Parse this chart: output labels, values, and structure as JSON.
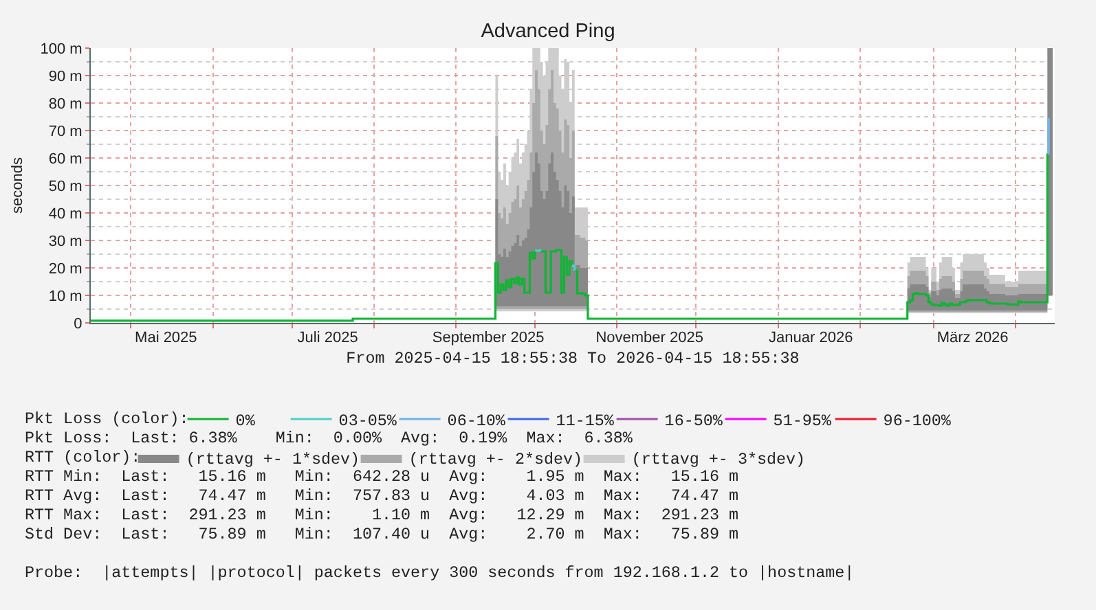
{
  "chart_data": {
    "type": "step",
    "title": "Advanced Ping",
    "xlabel": "From 2025-04-15 18:55:38 To 2026-04-15 18:55:38",
    "ylabel": "seconds",
    "xlim": [
      "2025-04-15T18:55",
      "2026-04-15T18:55"
    ],
    "xticks": [
      {
        "value": "2025-05-01",
        "label": null
      },
      {
        "value": "2025-05-14T06:00",
        "label": "Mai 2025"
      },
      {
        "value": "2025-06-01",
        "label": null
      },
      {
        "value": "2025-07-01",
        "label": null
      },
      {
        "value": "2025-07-14T12:00",
        "label": "Juli 2025"
      },
      {
        "value": "2025-08-01",
        "label": null
      },
      {
        "value": "2025-09-01",
        "label": null
      },
      {
        "value": "2025-09-13T07:00",
        "label": "September 2025"
      },
      {
        "value": "2025-10-01",
        "label": null
      },
      {
        "value": "2025-11-01",
        "label": null
      },
      {
        "value": "2025-11-13T09:00",
        "label": "November 2025"
      },
      {
        "value": "2025-12-01",
        "label": null
      },
      {
        "value": "2026-01-01",
        "label": null
      },
      {
        "value": "2026-01-13T10:00",
        "label": "Januar 2026"
      },
      {
        "value": "2026-02-01",
        "label": null
      },
      {
        "value": "2026-03-01",
        "label": null
      },
      {
        "value": "2026-03-15T17:00",
        "label": "März 2026"
      },
      {
        "value": "2026-04-01",
        "label": null
      }
    ],
    "ylim": [
      0,
      100
    ],
    "yticks": [
      0,
      {
        "value": 5,
        "label": null
      },
      {
        "value": 10,
        "label": "10 m"
      },
      {
        "value": 15,
        "label": null
      },
      {
        "value": 20,
        "label": "20 m"
      },
      {
        "value": 25,
        "label": null
      },
      {
        "value": 30,
        "label": "30 m"
      },
      {
        "value": 35,
        "label": null
      },
      {
        "value": 40,
        "label": "40 m"
      },
      {
        "value": 45,
        "label": null
      },
      {
        "value": 50,
        "label": "50 m"
      },
      {
        "value": 55,
        "label": null
      },
      {
        "value": 60,
        "label": "60 m"
      },
      {
        "value": 65,
        "label": null
      },
      {
        "value": 70,
        "label": "70 m"
      },
      {
        "value": 75,
        "label": null
      },
      {
        "value": 80,
        "label": "80 m"
      },
      {
        "value": 85,
        "label": null
      },
      {
        "value": 90,
        "label": "90 m"
      },
      {
        "value": 95,
        "label": null
      },
      {
        "value": 100,
        "label": "100 m"
      }
    ],
    "grid": true,
    "legend": "bottom",
    "line_style": "solid",
    "series": [
      {
        "name": "0%",
        "color": "#0fb434",
        "x": [
          "2025-04-15T18:55",
          "2025-07-24",
          "2025-09-16",
          "2025-09-17",
          "2025-09-18",
          "2025-09-19",
          "2025-09-20",
          "2025-09-21",
          "2025-09-22",
          "2025-09-23",
          "2025-09-24",
          "2025-09-25",
          "2025-09-26",
          "2025-09-27",
          "2025-09-29",
          "2025-09-30",
          "2025-10-01",
          "2025-10-01T12:00",
          "2025-10-03",
          "2025-10-05",
          "2025-10-07",
          "2025-10-09",
          "2025-10-11",
          "2025-10-12",
          "2025-10-13",
          "2025-10-14",
          "2025-10-15",
          "2025-10-15T12:00",
          "2025-10-16",
          "2025-10-17",
          "2025-10-19",
          "2025-10-20",
          "2025-10-21",
          "2026-02-19",
          "2026-02-20",
          "2026-02-21",
          "2026-02-22",
          "2026-02-23",
          "2026-02-26",
          "2026-02-27",
          "2026-02-28",
          "2026-03-01",
          "2026-03-03",
          "2026-03-04",
          "2026-03-05",
          "2026-03-06",
          "2026-03-07",
          "2026-03-08",
          "2026-03-10",
          "2026-03-11",
          "2026-03-13",
          "2026-03-14",
          "2026-03-21",
          "2026-03-22",
          "2026-03-23",
          "2026-03-29",
          "2026-04-02",
          "2026-04-03",
          "2026-04-13"
        ],
        "values": [
          0.8,
          1.5,
          21.7,
          11,
          14,
          12,
          15.5,
          13,
          16,
          14.5,
          16.5,
          14,
          16,
          11,
          25.5,
          23.5,
          26.3,
          null,
          26,
          11,
          26,
          26.5,
          11,
          24,
          17.5,
          22.5,
          20.8,
          null,
          19,
          10.8,
          10.5,
          10,
          1.5,
          7.5,
          8.3,
          10.5,
          10.8,
          10.5,
          10,
          7.5,
          6.7,
          6.5,
          6.2,
          7.2,
          6.7,
          6.2,
          7,
          6.5,
          6.7,
          7.5,
          8,
          8.3,
          7.5,
          7.2,
          7,
          6.7,
          7.8,
          7.5,
          61.7
        ]
      },
      {
        "name": "03-05%",
        "color": "#4dd0c8",
        "x": [
          "2025-10-01",
          "2025-10-03",
          "2025-10-09",
          "2025-10-15",
          "2025-10-16"
        ],
        "values": [
          26.3,
          26,
          null,
          20.8,
          19
        ]
      },
      {
        "name": "06-10%",
        "color": "#70b4e8",
        "x": [
          "2026-04-13",
          "2026-04-13T12:00"
        ],
        "values": [
          61.7,
          74.5
        ]
      },
      {
        "name": "11-15%",
        "color": "#3f67e0"
      },
      {
        "name": "16-50%",
        "color": "#a04ea8"
      },
      {
        "name": "51-95%",
        "color": "#ff00ff"
      },
      {
        "name": "96-100%",
        "color": "#ee1b2e"
      },
      {
        "name": "(rttavg +- 1*sdev)",
        "color": "#888888",
        "x": [
          "2025-09-16",
          "2025-09-17",
          "2025-09-18",
          "2025-09-19",
          "2025-09-20",
          "2025-09-21",
          "2025-09-22",
          "2025-09-23",
          "2025-09-24",
          "2025-09-25",
          "2025-09-26",
          "2025-09-27",
          "2025-09-28",
          "2025-09-29",
          "2025-09-30",
          "2025-10-01",
          "2025-10-02",
          "2025-10-03",
          "2025-10-04",
          "2025-10-05",
          "2025-10-06",
          "2025-10-07",
          "2025-10-08",
          "2025-10-09",
          "2025-10-10",
          "2025-10-11",
          "2025-10-12",
          "2025-10-13",
          "2025-10-14",
          "2025-10-15",
          "2025-10-16",
          "2025-10-17",
          "2025-10-18",
          "2025-10-19",
          "2025-10-20",
          "2025-10-21",
          "2025-12-01",
          "2026-02-19",
          "2026-02-20",
          "2026-02-26",
          "2026-02-27",
          "2026-02-28",
          "2026-03-02",
          "2026-03-03",
          "2026-03-04",
          "2026-03-08",
          "2026-03-09",
          "2026-03-11",
          "2026-03-12",
          "2026-03-20",
          "2026-03-21",
          "2026-03-22",
          "2026-03-28",
          "2026-04-02",
          "2026-04-13",
          "2026-04-15"
        ],
        "values": [
          null,
          null,
          null,
          null,
          null,
          null,
          null,
          null,
          null,
          null,
          null,
          null,
          null,
          null,
          null,
          null,
          null,
          null,
          null,
          null,
          null,
          null,
          null,
          null,
          null,
          null,
          null,
          null,
          null,
          null,
          null,
          null,
          null,
          null,
          null,
          null,
          null,
          null,
          null,
          null,
          null,
          null,
          null,
          null,
          null,
          null,
          null,
          null,
          null,
          null,
          null,
          null,
          null,
          null,
          null,
          null
        ],
        "lower": [
          6,
          6,
          6,
          6,
          6,
          6,
          6,
          6,
          6,
          6,
          6,
          6,
          6,
          6,
          6,
          6,
          6,
          6,
          6,
          6,
          6,
          6,
          6,
          6,
          6,
          6,
          6,
          6,
          6,
          6,
          6,
          6,
          6,
          6,
          6,
          6,
          null,
          4.5,
          4.5,
          4.5,
          4.5,
          4.5,
          4.5,
          4.5,
          4.5,
          4.5,
          4.5,
          4.5,
          4.5,
          4.5,
          4.5,
          4.5,
          4.5,
          4.5,
          10,
          10
        ],
        "upper": [
          45,
          25,
          24,
          27,
          24,
          26,
          28,
          29,
          32,
          28,
          30,
          31,
          34,
          42,
          55,
          62,
          58,
          48,
          45,
          48,
          58,
          62,
          55,
          52,
          48,
          42,
          50,
          48,
          40,
          46,
          21,
          21,
          20,
          20,
          20,
          20,
          null,
          12.5,
          14,
          13,
          9.5,
          11.5,
          10,
          12,
          12.5,
          11.5,
          9,
          11.5,
          14,
          12.5,
          11.5,
          10.5,
          10,
          10.5,
          100,
          100
        ]
      },
      {
        "name": "(rttavg +- 2*sdev)",
        "color": "#aaaaaa",
        "x": [
          "2025-09-16",
          "2025-09-17",
          "2025-09-18",
          "2025-09-19",
          "2025-09-20",
          "2025-09-21",
          "2025-09-22",
          "2025-09-23",
          "2025-09-24",
          "2025-09-25",
          "2025-09-26",
          "2025-09-27",
          "2025-09-28",
          "2025-09-29",
          "2025-09-30",
          "2025-10-01",
          "2025-10-02",
          "2025-10-03",
          "2025-10-04",
          "2025-10-05",
          "2025-10-06",
          "2025-10-07",
          "2025-10-08",
          "2025-10-09",
          "2025-10-10",
          "2025-10-11",
          "2025-10-12",
          "2025-10-13",
          "2025-10-14",
          "2025-10-15",
          "2025-10-16",
          "2025-10-17",
          "2025-10-18",
          "2025-10-19",
          "2025-10-20",
          "2025-10-21",
          "2025-12-01",
          "2026-02-19",
          "2026-02-20",
          "2026-02-26",
          "2026-02-27",
          "2026-02-28",
          "2026-03-02",
          "2026-03-03",
          "2026-03-04",
          "2026-03-08",
          "2026-03-09",
          "2026-03-11",
          "2026-03-12",
          "2026-03-20",
          "2026-03-21",
          "2026-03-22",
          "2026-03-28",
          "2026-04-02",
          "2026-04-13"
        ],
        "values": [
          null,
          null,
          null,
          null,
          null,
          null,
          null,
          null,
          null,
          null,
          null,
          null,
          null,
          null,
          null,
          null,
          null,
          null,
          null,
          null,
          null,
          null,
          null,
          null,
          null,
          null,
          null,
          null,
          null,
          null,
          null,
          null,
          null,
          null,
          null,
          null,
          null,
          null,
          null,
          null,
          null,
          null,
          null,
          null,
          null,
          null,
          null,
          null,
          null,
          null,
          null,
          null,
          null,
          null,
          null
        ],
        "lower": [
          5,
          5,
          5,
          5,
          5,
          5,
          5,
          5,
          5,
          5,
          5,
          5,
          5,
          5,
          5,
          5,
          5,
          5,
          5,
          5,
          5,
          5,
          5,
          5,
          5,
          5,
          5,
          5,
          5,
          5,
          5,
          5,
          5,
          5,
          5,
          5,
          null,
          4,
          4,
          4,
          4,
          4,
          4,
          4,
          4,
          4,
          4,
          4,
          4,
          4,
          4,
          4,
          4,
          4,
          4
        ],
        "upper": [
          68,
          40,
          38,
          42,
          36,
          40,
          44,
          45,
          50,
          42,
          45,
          48,
          52,
          62,
          80,
          92,
          85,
          70,
          65,
          72,
          85,
          92,
          80,
          78,
          70,
          62,
          74,
          72,
          60,
          70,
          32,
          32,
          31,
          31,
          30,
          30,
          null,
          17,
          19,
          17,
          11,
          15,
          12,
          16,
          17,
          15,
          10.5,
          16,
          19,
          17,
          16,
          14.2,
          13,
          14.2,
          14.2
        ]
      },
      {
        "name": "(rttavg +- 3*sdev)",
        "color": "#cdcdcd",
        "x": [
          "2025-09-16",
          "2025-09-17",
          "2025-09-18",
          "2025-09-19",
          "2025-09-20",
          "2025-09-21",
          "2025-09-22",
          "2025-09-23",
          "2025-09-24",
          "2025-09-25",
          "2025-09-26",
          "2025-09-27",
          "2025-09-28",
          "2025-09-29",
          "2025-09-30",
          "2025-10-01",
          "2025-10-02",
          "2025-10-03",
          "2025-10-04",
          "2025-10-05",
          "2025-10-06",
          "2025-10-07",
          "2025-10-08",
          "2025-10-09",
          "2025-10-10",
          "2025-10-11",
          "2025-10-12",
          "2025-10-13",
          "2025-10-14",
          "2025-10-15",
          "2025-10-16",
          "2025-10-17",
          "2025-10-18",
          "2025-10-19",
          "2025-10-20",
          "2025-10-21",
          "2025-12-01",
          "2026-02-19",
          "2026-02-20",
          "2026-02-26",
          "2026-02-27",
          "2026-02-28",
          "2026-03-02",
          "2026-03-03",
          "2026-03-04",
          "2026-03-08",
          "2026-03-09",
          "2026-03-11",
          "2026-03-12",
          "2026-03-20",
          "2026-03-21",
          "2026-03-22",
          "2026-03-28",
          "2026-04-02",
          "2026-04-13"
        ],
        "values": [
          null,
          null,
          null,
          null,
          null,
          null,
          null,
          null,
          null,
          null,
          null,
          null,
          null,
          null,
          null,
          null,
          null,
          null,
          null,
          null,
          null,
          null,
          null,
          null,
          null,
          null,
          null,
          null,
          null,
          null,
          null,
          null,
          null,
          null,
          null,
          null,
          null,
          null,
          null,
          null,
          null,
          null,
          null,
          null,
          null,
          null,
          null,
          null,
          null,
          null,
          null,
          null,
          null,
          null,
          null
        ],
        "lower": [
          4.2,
          4.2,
          4.2,
          4.2,
          4.2,
          4.2,
          4.2,
          4.2,
          4.2,
          4.2,
          4.2,
          4.2,
          4.2,
          4.2,
          4.2,
          4.2,
          4.2,
          4.2,
          4.2,
          4.2,
          4.2,
          4.2,
          4.2,
          4.2,
          4.2,
          4.2,
          4.2,
          4.2,
          4.2,
          4.2,
          4.2,
          4.2,
          4.2,
          4.2,
          4.2,
          4.2,
          null,
          3.5,
          3.5,
          3.5,
          3.5,
          3.5,
          3.5,
          3.5,
          3.5,
          3.5,
          3.5,
          3.5,
          3.5,
          3.5,
          3.5,
          3.5,
          3.5,
          3.5,
          3.5
        ],
        "upper": [
          90,
          55,
          52,
          58,
          50,
          55,
          60,
          62,
          67,
          58,
          62,
          65,
          70,
          85,
          100,
          100,
          100,
          95,
          90,
          95,
          100,
          100,
          100,
          100,
          90,
          85,
          96,
          95,
          80,
          92,
          42,
          42,
          42,
          42,
          42,
          42,
          null,
          22,
          24,
          20,
          12,
          20,
          15,
          22,
          24,
          20,
          12,
          22,
          25,
          22,
          20,
          17.5,
          15,
          19,
          19
        ]
      }
    ],
    "annotations": [
      "Pkt Loss (color):",
      "Pkt Loss:  Last: 6.38%    Min:  0.00%  Avg:  0.19%  Max:  6.38%",
      "RTT (color):",
      "RTT Min:  Last:   15.16 m   Min:  642.28 u  Avg:    1.95 m  Max:   15.16 m",
      "RTT Avg:  Last:   74.47 m   Min:  757.83 u  Avg:    4.03 m  Max:   74.47 m",
      "RTT Max:  Last:  291.23 m   Min:    1.10 m  Avg:   12.29 m  Max:  291.23 m",
      "Std Dev:  Last:   75.89 m   Min:  107.40 u  Avg:    2.70 m  Max:   75.89 m",
      "Probe:  |attempts| |protocol| packets every 300 seconds from 192.168.1.2 to |hostname|"
    ]
  }
}
